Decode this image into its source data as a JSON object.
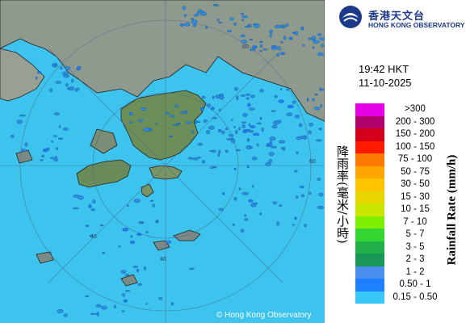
{
  "logo": {
    "chinese": "香港天文台",
    "english": "HONG KONG OBSERVATORY"
  },
  "time": "19:42 HKT",
  "date": "11-10-2025",
  "legend": {
    "chinese_title": "降雨率(毫米/小時)",
    "english_title": "Rainfall Rate (mm/h)",
    "items": [
      {
        "label": ">300",
        "color": "#e600e6"
      },
      {
        "label": "200 - 300",
        "color": "#b0006e"
      },
      {
        "label": "150 - 200",
        "color": "#d4001a"
      },
      {
        "label": "100 - 150",
        "color": "#ff1a00"
      },
      {
        "label": "75 - 100",
        "color": "#ff7a00"
      },
      {
        "label": "50 - 75",
        "color": "#ffa500"
      },
      {
        "label": "30 - 50",
        "color": "#ffc400"
      },
      {
        "label": "15 - 30",
        "color": "#e8d400"
      },
      {
        "label": "10 - 15",
        "color": "#c8e600"
      },
      {
        "label": "7 - 10",
        "color": "#7eee00"
      },
      {
        "label": "5 - 7",
        "color": "#33d633"
      },
      {
        "label": "3 - 5",
        "color": "#22b04a"
      },
      {
        "label": "2 - 3",
        "color": "#1a9657"
      },
      {
        "label": "1 - 2",
        "color": "#4a8ff0"
      },
      {
        "label": "0.50 - 1",
        "color": "#1e80ff"
      },
      {
        "label": "0.15 - 0.50",
        "color": "#38c8f8"
      }
    ]
  },
  "range_labels": [
    "60",
    "40",
    "60",
    "40"
  ],
  "copyright": "© Hong Kong Observatory",
  "colors": {
    "sea": "#3cc3ee",
    "land": "#8a9a88",
    "coast": "#1a1a1a",
    "rain_light": "#2a8ee8"
  }
}
